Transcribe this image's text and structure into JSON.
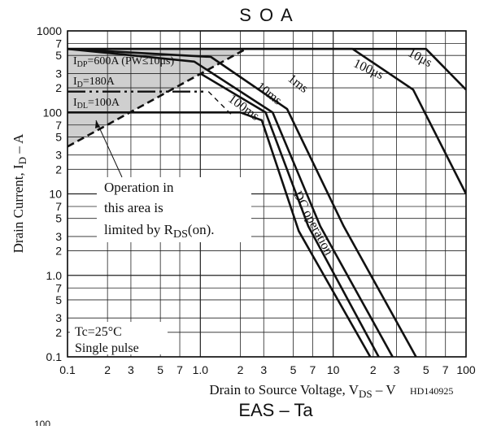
{
  "chart_data": {
    "type": "line",
    "title": "S O A",
    "xlabel_prefix": "Drain to Source Voltage, V",
    "xlabel_sub": "DS",
    "xlabel_suffix": " – V",
    "ylabel_prefix": "Drain Current, I",
    "ylabel_sub": "D",
    "ylabel_suffix": " – A",
    "x_scale": "log",
    "y_scale": "log",
    "xlim": [
      0.1,
      100
    ],
    "ylim": [
      0.1,
      1000
    ],
    "grid": true,
    "x_ticks": [
      {
        "v": 0.1,
        "t": "0.1"
      },
      {
        "v": 0.2,
        "t": "2"
      },
      {
        "v": 0.3,
        "t": "3"
      },
      {
        "v": 0.5,
        "t": "5"
      },
      {
        "v": 0.7,
        "t": "7"
      },
      {
        "v": 1.0,
        "t": "1.0"
      },
      {
        "v": 2,
        "t": "2"
      },
      {
        "v": 3,
        "t": "3"
      },
      {
        "v": 5,
        "t": "5"
      },
      {
        "v": 7,
        "t": "7"
      },
      {
        "v": 10,
        "t": "10"
      },
      {
        "v": 20,
        "t": "2"
      },
      {
        "v": 30,
        "t": "3"
      },
      {
        "v": 50,
        "t": "5"
      },
      {
        "v": 70,
        "t": "7"
      },
      {
        "v": 100,
        "t": "100"
      }
    ],
    "y_ticks": [
      {
        "v": 0.1,
        "t": "0.1"
      },
      {
        "v": 0.2,
        "t": "2"
      },
      {
        "v": 0.3,
        "t": "3"
      },
      {
        "v": 0.5,
        "t": "5"
      },
      {
        "v": 0.7,
        "t": "7"
      },
      {
        "v": 1.0,
        "t": "1.0"
      },
      {
        "v": 2,
        "t": "2"
      },
      {
        "v": 3,
        "t": "3"
      },
      {
        "v": 5,
        "t": "5"
      },
      {
        "v": 7,
        "t": "7"
      },
      {
        "v": 10,
        "t": "10"
      },
      {
        "v": 20,
        "t": "2"
      },
      {
        "v": 30,
        "t": "3"
      },
      {
        "v": 50,
        "t": "5"
      },
      {
        "v": 70,
        "t": "7"
      },
      {
        "v": 100,
        "t": "100"
      },
      {
        "v": 200,
        "t": "2"
      },
      {
        "v": 300,
        "t": "3"
      },
      {
        "v": 500,
        "t": "5"
      },
      {
        "v": 700,
        "t": "7"
      },
      {
        "v": 1000,
        "t": "1000"
      }
    ],
    "series": [
      {
        "name": "10μs",
        "points": [
          [
            0.1,
            600
          ],
          [
            50,
            600
          ],
          [
            100,
            190
          ]
        ]
      },
      {
        "name": "100μs",
        "points": [
          [
            0.1,
            600
          ],
          [
            14,
            600
          ],
          [
            40,
            190
          ],
          [
            100,
            10
          ]
        ]
      },
      {
        "name": "1ms",
        "points": [
          [
            0.1,
            600
          ],
          [
            1.2,
            480
          ],
          [
            4.5,
            110
          ],
          [
            12,
            4
          ],
          [
            42,
            0.1
          ]
        ]
      },
      {
        "name": "10ms",
        "points": [
          [
            0.1,
            600
          ],
          [
            0.9,
            420
          ],
          [
            3.5,
            100
          ],
          [
            8,
            4
          ],
          [
            28,
            0.1
          ]
        ]
      },
      {
        "name": "100ms",
        "points": [
          [
            1.0,
            300
          ],
          [
            3.1,
            100
          ],
          [
            6.5,
            4
          ],
          [
            22,
            0.1
          ]
        ]
      },
      {
        "name": "DC operation",
        "points": [
          [
            0.1,
            100
          ],
          [
            2,
            100
          ],
          [
            2.9,
            80
          ],
          [
            5.5,
            3.5
          ],
          [
            19,
            0.1
          ]
        ]
      }
    ],
    "rds_limit_line": {
      "points": [
        [
          0.1,
          38
        ],
        [
          2.2,
          600
        ]
      ]
    },
    "id_limit_line": {
      "name": "I_D=180A",
      "points": [
        [
          0.1,
          180
        ],
        [
          1.1,
          180
        ]
      ]
    },
    "region_annotations": [
      {
        "text_prefix": "I",
        "text_sub": "DP",
        "text_suffix": "=600A (PW≤10μs)",
        "y": 600
      },
      {
        "text_prefix": "I",
        "text_sub": "D",
        "text_suffix": "=180A",
        "y": 180
      },
      {
        "text_prefix": "I",
        "text_sub": "DL",
        "text_suffix": "=100A",
        "y": 100
      }
    ],
    "curve_labels": [
      {
        "text": "10μs",
        "x": 36,
        "y": 500
      },
      {
        "text": "100μs",
        "x": 14,
        "y": 370
      },
      {
        "text": "1ms",
        "x": 4.5,
        "y": 250
      },
      {
        "text": "10ms",
        "x": 2.6,
        "y": 200
      },
      {
        "text": "100ms",
        "x": 1.6,
        "y": 140
      },
      {
        "text": "DC operation",
        "x": 5,
        "y": 10
      }
    ],
    "annotations": {
      "rds_note_line1": "Operation in",
      "rds_note_line2": "this area is",
      "rds_note_line3_prefix": "limited by R",
      "rds_note_line3_sub": "DS",
      "rds_note_line3_suffix": "(on).",
      "conditions_line1": "Tc=25°C",
      "conditions_line2": "Single pulse",
      "code": "HD140925"
    },
    "next_title": "EAS – Ta",
    "next_chart_top_tick": "100"
  },
  "colors": {
    "line": "#111111",
    "grid": "#222222",
    "shade": "#cfcfcf",
    "background": "#ffffff"
  }
}
